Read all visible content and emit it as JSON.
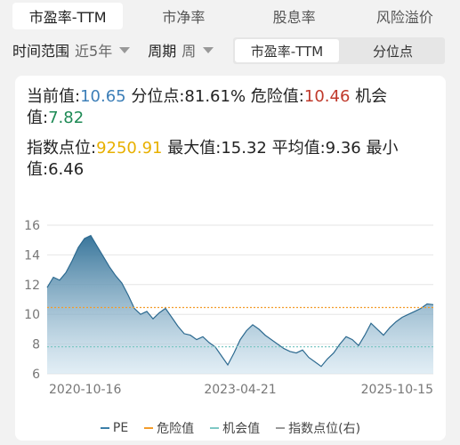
{
  "tabs": [
    {
      "label": "市盈率-TTM",
      "active": true
    },
    {
      "label": "市净率",
      "active": false
    },
    {
      "label": "股息率",
      "active": false
    },
    {
      "label": "风险溢价",
      "active": false
    }
  ],
  "filters": {
    "range_label": "时间范围",
    "range_value": "近5年",
    "period_label": "周期",
    "period_value": "周",
    "segments": [
      {
        "label": "市盈率-TTM",
        "active": true
      },
      {
        "label": "分位点",
        "active": false
      }
    ]
  },
  "stats": {
    "current_label": "当前值:",
    "current_value": "10.65",
    "percentile_label": "分位点:",
    "percentile_value": "81.61%",
    "danger_label": "危险值:",
    "danger_value": "10.46",
    "opportunity_label": "机会值:",
    "opportunity_value": "7.82",
    "index_label": "指数点位:",
    "index_value": "9250.91",
    "max_label": "最大值:",
    "max_value": "15.32",
    "avg_label": "平均值:",
    "avg_value": "9.36",
    "min_label": "最小值:",
    "min_value": "6.46"
  },
  "colors": {
    "pe": "#3b7fa8",
    "danger": "#f39c2b",
    "opportunity": "#7ec8c4",
    "index": "#999999",
    "current": "#3d7fb8",
    "danger_text": "#c0392b",
    "opportunity_text": "#1e8a55",
    "index_text": "#e8b000"
  },
  "chart_data": {
    "type": "area",
    "x_ticks": [
      "2020-10-16",
      "2023-04-21",
      "2025-10-15"
    ],
    "y_ticks": [
      "6",
      "8",
      "10",
      "12",
      "14",
      "16"
    ],
    "ylim": [
      6,
      16
    ],
    "danger_value": 10.46,
    "opportunity_value": 7.82,
    "series": [
      {
        "name": "PE",
        "values": [
          11.8,
          12.5,
          12.3,
          12.8,
          13.6,
          14.5,
          15.1,
          15.3,
          14.6,
          13.9,
          13.2,
          12.6,
          12.1,
          11.3,
          10.4,
          10.0,
          10.2,
          9.7,
          10.1,
          10.4,
          9.8,
          9.2,
          8.7,
          8.6,
          8.3,
          8.5,
          8.1,
          7.8,
          7.2,
          6.6,
          7.4,
          8.3,
          8.9,
          9.3,
          9.0,
          8.6,
          8.3,
          8.0,
          7.7,
          7.5,
          7.4,
          7.6,
          7.1,
          6.8,
          6.5,
          7.0,
          7.4,
          8.0,
          8.5,
          8.3,
          7.9,
          8.6,
          9.4,
          9.0,
          8.6,
          9.1,
          9.5,
          9.8,
          10.0,
          10.2,
          10.4,
          10.7,
          10.65
        ]
      }
    ],
    "legend": [
      "PE",
      "危险值",
      "机会值",
      "指数点位(右)"
    ]
  }
}
